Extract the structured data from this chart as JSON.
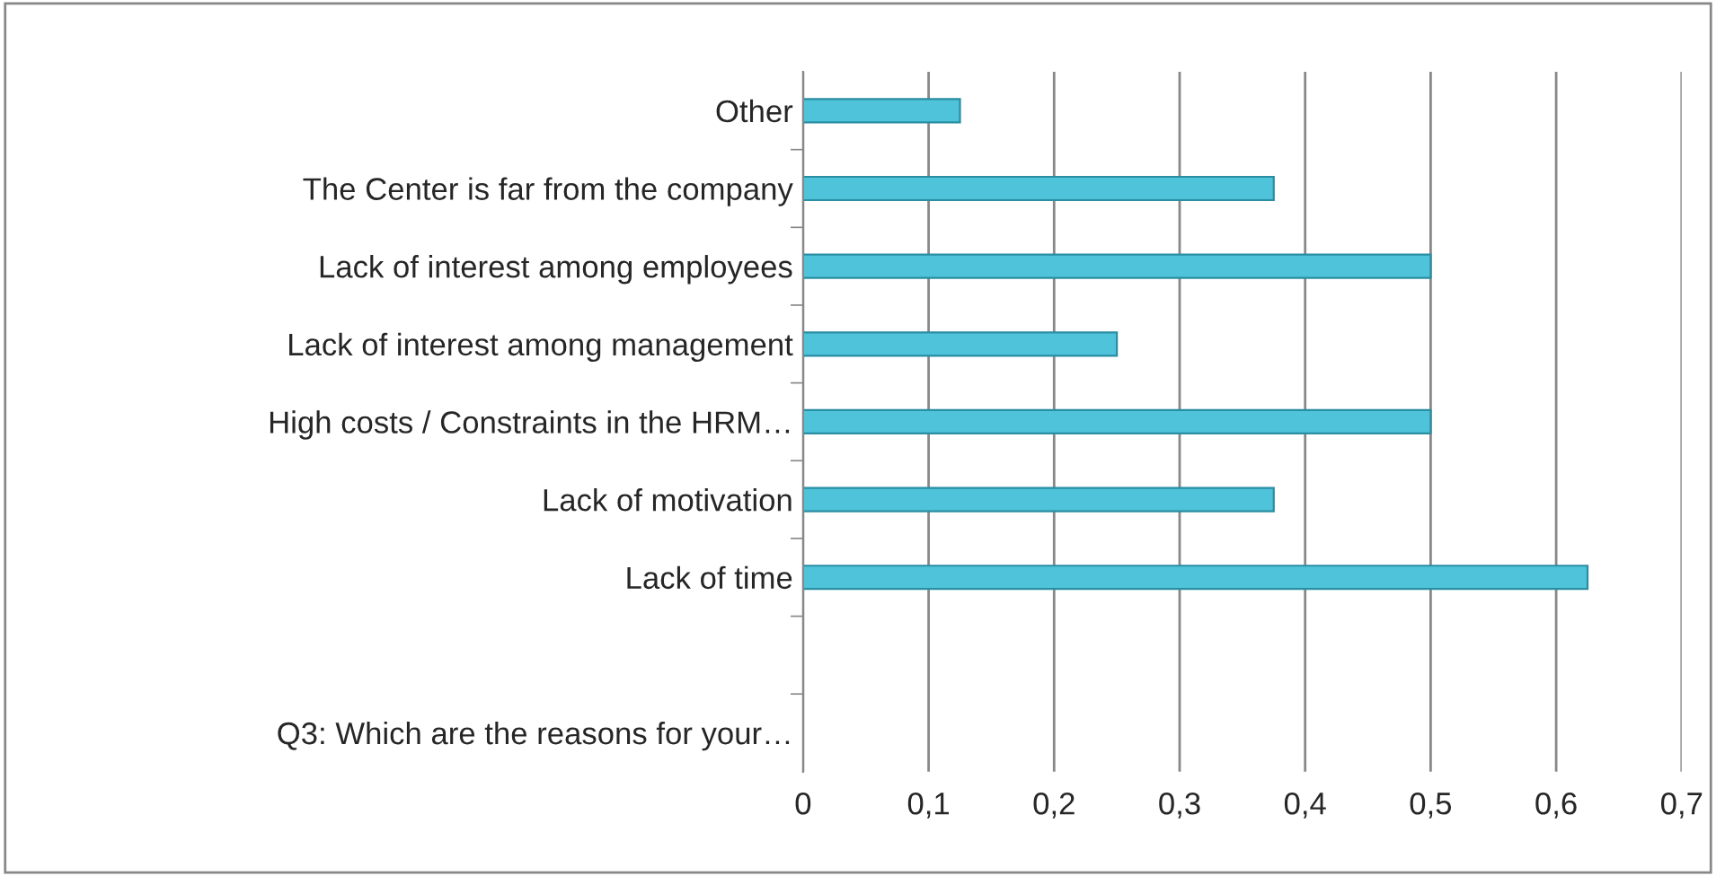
{
  "chart_data": {
    "type": "bar",
    "orientation": "horizontal",
    "categories": [
      "Other",
      "The Center is far from the company",
      "Lack of interest among employees",
      "Lack of interest among management",
      "High costs / Constraints in the HRM…",
      "Lack of motivation",
      "Lack of time",
      null,
      "Q3: Which are the reasons for your…"
    ],
    "values": [
      0.125,
      0.375,
      0.5,
      0.25,
      0.5,
      0.375,
      0.625,
      null,
      null
    ],
    "color": "#4fc3da",
    "xlim": [
      0,
      0.7
    ],
    "xticks": [
      0,
      {
        "value": 0.1,
        "label": "0,1"
      },
      {
        "value": 0.2,
        "label": "0,2"
      },
      {
        "value": 0.3,
        "label": "0,3"
      },
      {
        "value": 0.4,
        "label": "0,4"
      },
      {
        "value": 0.5,
        "label": "0,5"
      },
      {
        "value": 0.6,
        "label": "0,6"
      },
      {
        "value": 0.7,
        "label": "0,7"
      }
    ],
    "grid": "x",
    "legend": false
  }
}
